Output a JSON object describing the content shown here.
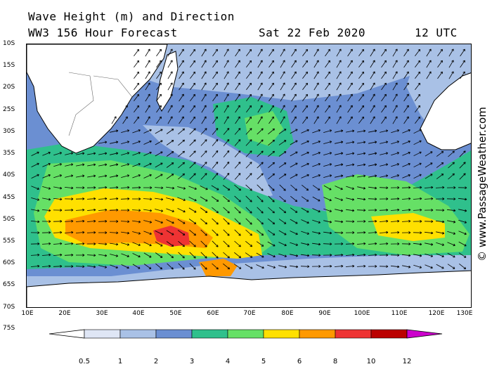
{
  "header": {
    "title": "Wave Height (m) and Direction",
    "subtitle": "WW3 156 Hour Forecast",
    "date": "Sat 22 Feb 2020",
    "time": "12 UTC"
  },
  "axes": {
    "lat_labels": [
      "10S",
      "15S",
      "20S",
      "25S",
      "30S",
      "35S",
      "40S",
      "45S",
      "50S",
      "55S",
      "60S",
      "65S",
      "70S",
      "75S"
    ],
    "lon_labels": [
      "10E",
      "20E",
      "30E",
      "40E",
      "50E",
      "60E",
      "70E",
      "80E",
      "90E",
      "100E",
      "110E",
      "120E",
      "130E"
    ],
    "lat_range": [
      -10,
      -75
    ],
    "lon_range": [
      10,
      130
    ]
  },
  "colorbar": {
    "labels": [
      "0.5",
      "1",
      "2",
      "3",
      "4",
      "5",
      "6",
      "8",
      "10",
      "12"
    ],
    "colors": [
      "#dfe6f5",
      "#a9c1e6",
      "#6b8fd2",
      "#2fc08c",
      "#66e066",
      "#ffe000",
      "#ff9900",
      "#ee3333",
      "#bb0000",
      "#cc00cc"
    ]
  },
  "watermark": "© www.PassageWeather.com",
  "colors": {
    "land": "#ffffff",
    "ocean_calm": "#a9c1e6",
    "coast": "#000000"
  }
}
